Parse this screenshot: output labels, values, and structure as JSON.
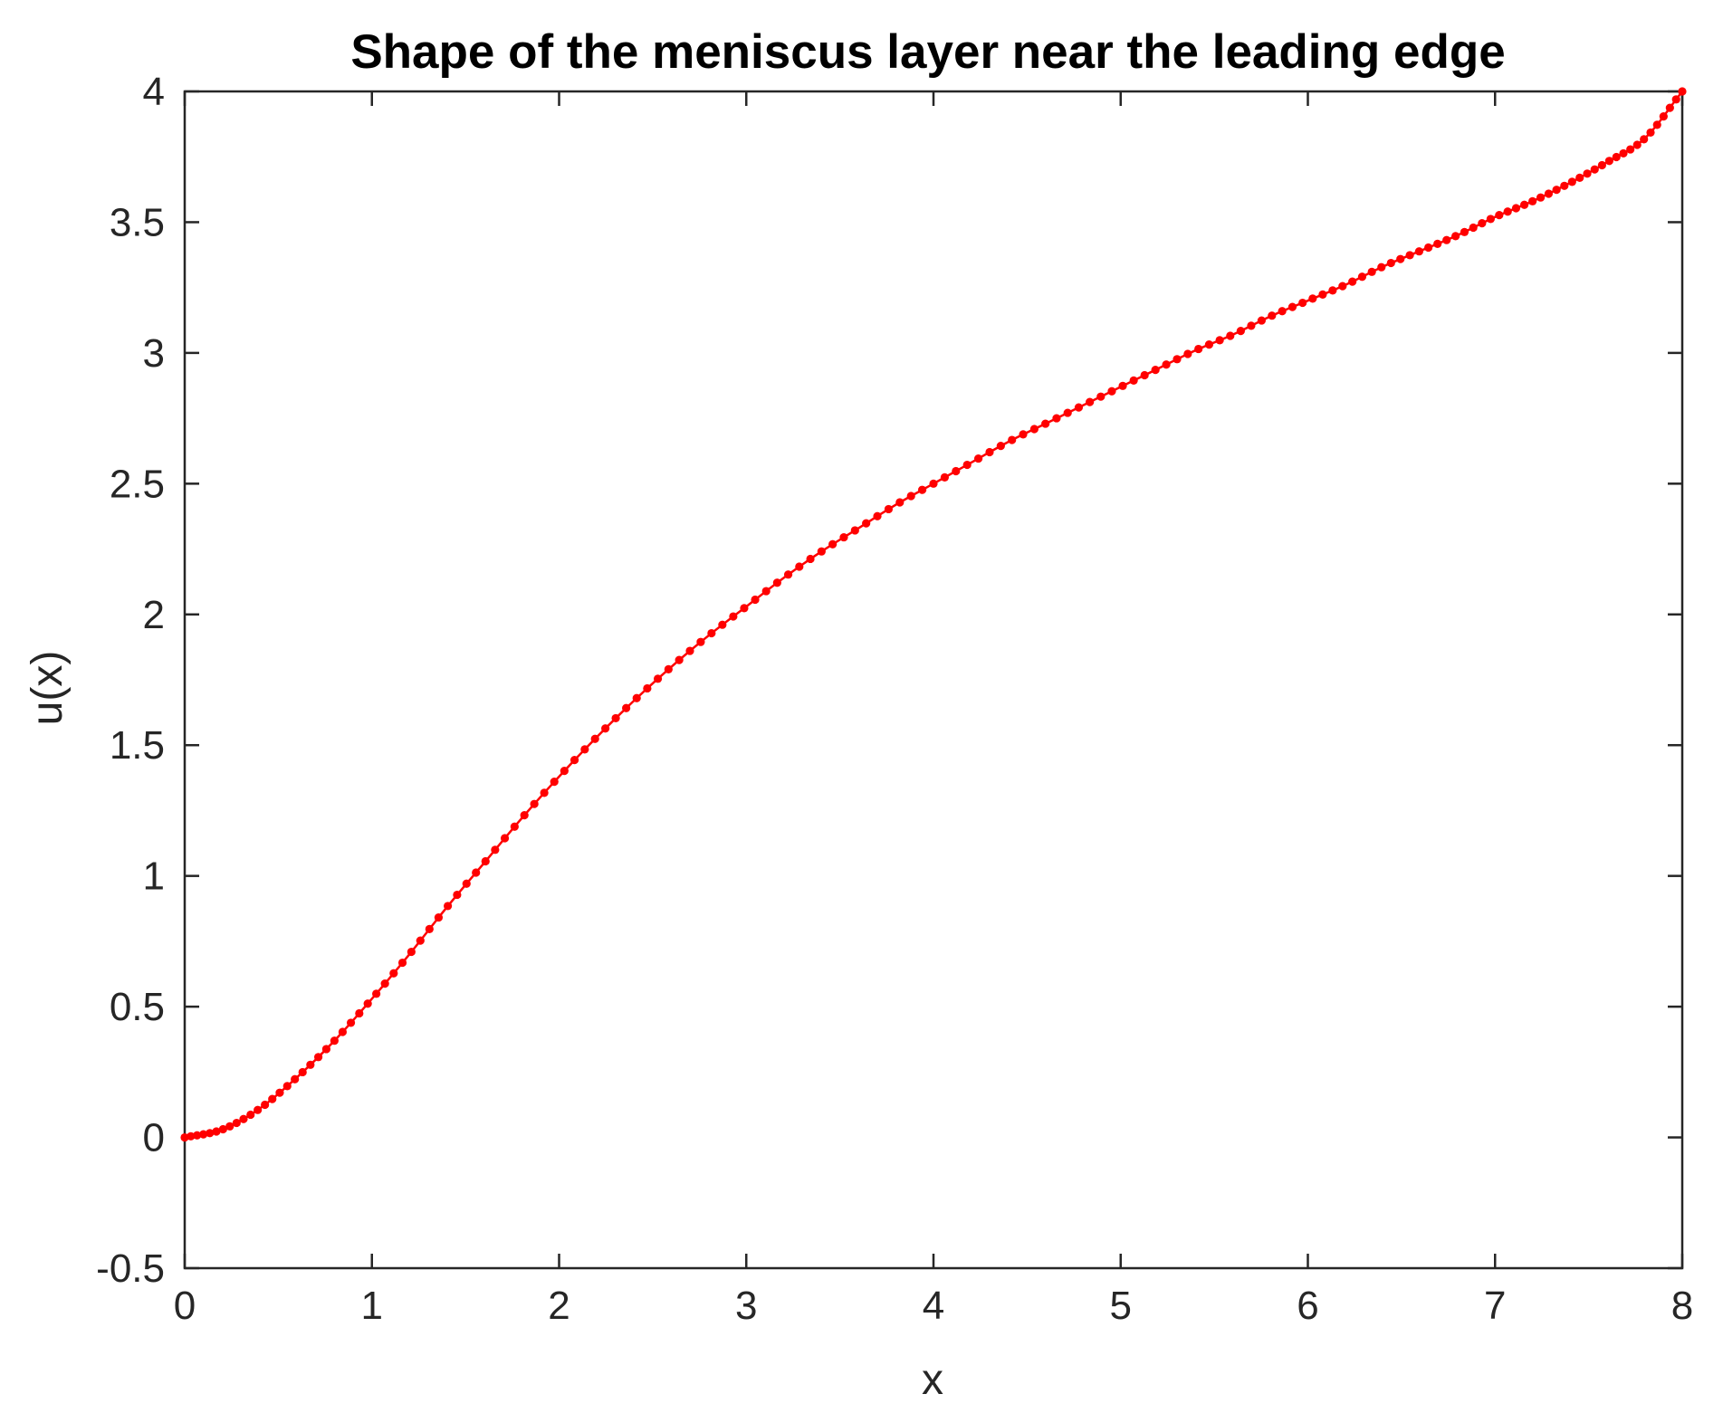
{
  "chart_data": {
    "type": "line",
    "title": "Shape of the meniscus layer near the leading edge",
    "xlabel": "x",
    "ylabel": "u(x)",
    "xlim": [
      0,
      8
    ],
    "ylim": [
      -0.5,
      4
    ],
    "xticks": [
      0,
      1,
      2,
      3,
      4,
      5,
      6,
      7,
      8
    ],
    "xtick_labels": [
      "0",
      "1",
      "2",
      "3",
      "4",
      "5",
      "6",
      "7",
      "8"
    ],
    "yticks": [
      -0.5,
      0,
      0.5,
      1,
      1.5,
      2,
      2.5,
      3,
      3.5,
      4
    ],
    "ytick_labels": [
      "-0.5",
      "0",
      "0.5",
      "1",
      "1.5",
      "2",
      "2.5",
      "3",
      "3.5",
      "4"
    ],
    "grid": false,
    "box": true,
    "series": [
      {
        "color": "#ff0000",
        "marker": "dot",
        "x": [
          0,
          0.2,
          0.4,
          0.6,
          0.8,
          1.0,
          1.2,
          1.4,
          1.6,
          1.8,
          2.0,
          2.2,
          2.4,
          2.6,
          2.8,
          3.0,
          3.2,
          3.4,
          3.6,
          3.8,
          4.0,
          4.2,
          4.4,
          4.6,
          4.8,
          5.0,
          5.2,
          5.4,
          5.6,
          5.8,
          6.0,
          6.2,
          6.4,
          6.6,
          6.8,
          7.0,
          7.2,
          7.4,
          7.6,
          7.8,
          8.0
        ],
        "y": [
          0,
          0.03,
          0.11,
          0.23,
          0.37,
          0.53,
          0.7,
          0.88,
          1.05,
          1.22,
          1.38,
          1.53,
          1.67,
          1.8,
          1.92,
          2.03,
          2.14,
          2.24,
          2.33,
          2.42,
          2.5,
          2.58,
          2.66,
          2.73,
          2.8,
          2.87,
          2.94,
          3.01,
          3.07,
          3.14,
          3.2,
          3.26,
          3.33,
          3.39,
          3.45,
          3.52,
          3.58,
          3.65,
          3.73,
          3.82,
          4.0
        ]
      }
    ]
  }
}
